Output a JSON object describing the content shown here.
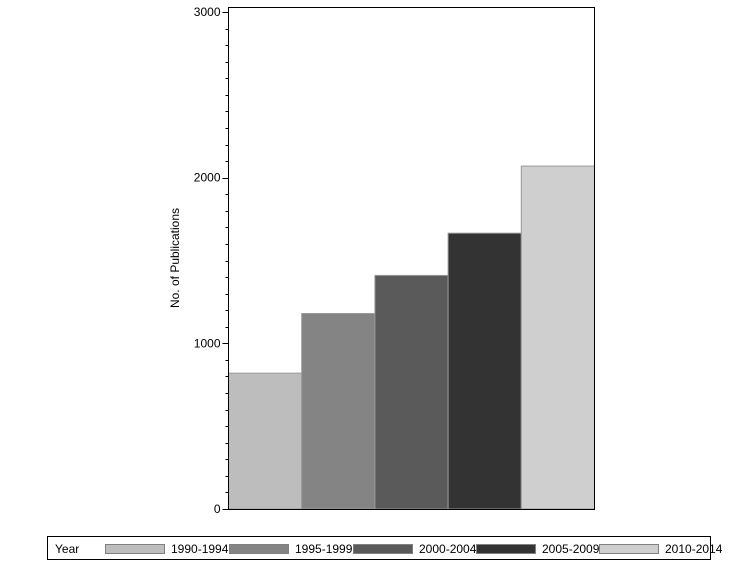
{
  "chart_data": {
    "type": "bar",
    "categories": [
      "1990-1994",
      "1995-1999",
      "2000-2004",
      "2005-2009",
      "2010-2014"
    ],
    "values": [
      820,
      1180,
      1410,
      1665,
      2070
    ],
    "colors": [
      "#bdbdbd",
      "#848484",
      "#5a5a5a",
      "#333333",
      "#cfcfcf"
    ],
    "ylabel": "No. of Publications",
    "xlabel": "",
    "ylim": [
      0,
      3000
    ],
    "yticks": [
      "0",
      "1000",
      "2000",
      "3000"
    ],
    "ytick_values": [
      0,
      1000,
      2000,
      3000
    ],
    "minor_tick_step": 100,
    "grid": false,
    "legend": {
      "title": "Year",
      "placement": "bottom",
      "entries": [
        "1990-1994",
        "1995-1999",
        "2000-2004",
        "2005-2009",
        "2010-2014"
      ]
    }
  }
}
